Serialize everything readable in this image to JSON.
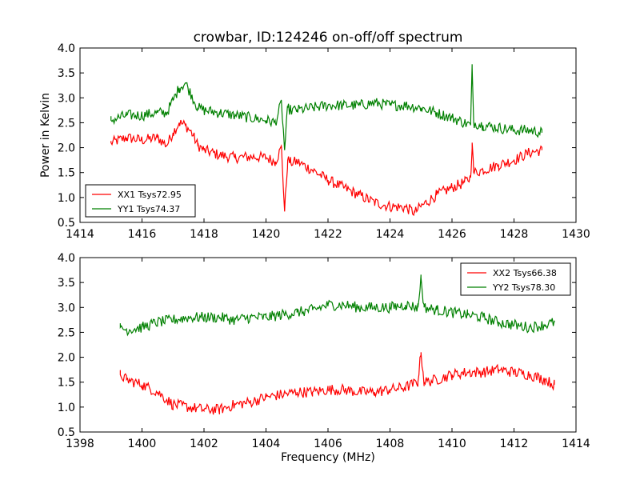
{
  "chart_data": [
    {
      "type": "line",
      "title": "crowbar, ID:124246 on-off/off spectrum",
      "xlabel": "",
      "ylabel": "Power in Kelvin",
      "xlim": [
        1414,
        1430
      ],
      "ylim": [
        0.5,
        4.0
      ],
      "xticks": [
        1414,
        1416,
        1418,
        1420,
        1422,
        1424,
        1426,
        1428,
        1430
      ],
      "yticks": [
        0.5,
        1.0,
        1.5,
        2.0,
        2.5,
        3.0,
        3.5,
        4.0
      ],
      "grid": false,
      "legend": "lower-left",
      "series": [
        {
          "name": "XX1 Tsys72.95",
          "color": "#ff0000",
          "x": [
            1415.0,
            1415.5,
            1416.0,
            1416.5,
            1416.8,
            1417.0,
            1417.2,
            1417.4,
            1417.6,
            1417.8,
            1418.0,
            1418.5,
            1419.0,
            1419.5,
            1420.0,
            1420.3,
            1420.5,
            1420.6,
            1420.7,
            1420.8,
            1421.0,
            1421.5,
            1422.0,
            1422.5,
            1423.0,
            1423.5,
            1424.0,
            1424.5,
            1424.8,
            1425.0,
            1425.5,
            1426.0,
            1426.4,
            1426.6,
            1426.65,
            1426.7,
            1427.0,
            1427.5,
            1428.0,
            1428.5,
            1428.9
          ],
          "y": [
            2.1,
            2.2,
            2.15,
            2.2,
            2.05,
            2.3,
            2.5,
            2.45,
            2.3,
            2.05,
            1.95,
            1.85,
            1.8,
            1.82,
            1.8,
            1.72,
            2.0,
            0.72,
            1.75,
            1.7,
            1.72,
            1.55,
            1.35,
            1.2,
            1.05,
            0.9,
            0.82,
            0.8,
            0.7,
            0.82,
            1.05,
            1.2,
            1.3,
            1.4,
            2.1,
            1.5,
            1.55,
            1.65,
            1.75,
            1.9,
            1.95
          ]
        },
        {
          "name": "YY1 Tsys74.37",
          "color": "#008000",
          "x": [
            1415.0,
            1415.5,
            1416.0,
            1416.5,
            1416.8,
            1417.0,
            1417.2,
            1417.4,
            1417.6,
            1417.8,
            1418.0,
            1418.5,
            1419.0,
            1419.5,
            1420.0,
            1420.3,
            1420.5,
            1420.6,
            1420.7,
            1420.8,
            1421.0,
            1421.5,
            1422.0,
            1422.5,
            1423.0,
            1423.5,
            1424.0,
            1424.5,
            1425.0,
            1425.5,
            1426.0,
            1426.4,
            1426.6,
            1426.65,
            1426.7,
            1427.0,
            1427.5,
            1428.0,
            1428.5,
            1428.9
          ],
          "y": [
            2.55,
            2.65,
            2.65,
            2.7,
            2.7,
            2.95,
            3.2,
            3.3,
            3.05,
            2.8,
            2.75,
            2.7,
            2.65,
            2.6,
            2.55,
            2.5,
            2.9,
            1.95,
            2.8,
            2.75,
            2.75,
            2.8,
            2.85,
            2.85,
            2.85,
            2.9,
            2.85,
            2.85,
            2.8,
            2.7,
            2.6,
            2.5,
            2.45,
            3.6,
            2.5,
            2.45,
            2.4,
            2.35,
            2.35,
            2.3
          ]
        }
      ]
    },
    {
      "type": "line",
      "title": "",
      "xlabel": "Frequency (MHz)",
      "ylabel": "",
      "xlim": [
        1398,
        1414
      ],
      "ylim": [
        0.5,
        4.0
      ],
      "xticks": [
        1398,
        1400,
        1402,
        1404,
        1406,
        1408,
        1410,
        1412,
        1414
      ],
      "yticks": [
        0.5,
        1.0,
        1.5,
        2.0,
        2.5,
        3.0,
        3.5,
        4.0
      ],
      "grid": false,
      "legend": "top-right",
      "series": [
        {
          "name": "XX2 Tsys66.38",
          "color": "#ff0000",
          "x": [
            1399.3,
            1399.5,
            1400.0,
            1400.5,
            1401.0,
            1401.5,
            1402.0,
            1402.5,
            1403.0,
            1403.5,
            1404.0,
            1404.5,
            1405.0,
            1405.5,
            1406.0,
            1406.5,
            1407.0,
            1407.5,
            1408.0,
            1408.5,
            1408.9,
            1409.0,
            1409.1,
            1409.5,
            1410.0,
            1410.5,
            1411.0,
            1411.5,
            1412.0,
            1412.5,
            1413.0,
            1413.3
          ],
          "y": [
            1.65,
            1.55,
            1.45,
            1.3,
            1.05,
            1.0,
            0.95,
            0.95,
            1.05,
            1.1,
            1.2,
            1.25,
            1.3,
            1.3,
            1.35,
            1.35,
            1.3,
            1.3,
            1.35,
            1.4,
            1.5,
            2.1,
            1.5,
            1.55,
            1.65,
            1.7,
            1.7,
            1.75,
            1.7,
            1.65,
            1.55,
            1.45
          ]
        },
        {
          "name": "YY2 Tsys78.30",
          "color": "#008000",
          "x": [
            1399.3,
            1399.5,
            1400.0,
            1400.5,
            1401.0,
            1401.5,
            1402.0,
            1402.5,
            1403.0,
            1403.5,
            1404.0,
            1404.5,
            1405.0,
            1405.5,
            1406.0,
            1406.5,
            1407.0,
            1407.5,
            1408.0,
            1408.5,
            1408.9,
            1409.0,
            1409.1,
            1409.5,
            1410.0,
            1410.5,
            1411.0,
            1411.5,
            1412.0,
            1412.5,
            1413.0,
            1413.3
          ],
          "y": [
            2.6,
            2.55,
            2.6,
            2.7,
            2.75,
            2.8,
            2.8,
            2.8,
            2.75,
            2.8,
            2.8,
            2.85,
            2.9,
            2.95,
            3.05,
            3.05,
            3.0,
            3.0,
            3.0,
            3.05,
            3.0,
            3.6,
            3.0,
            2.95,
            2.9,
            2.85,
            2.8,
            2.7,
            2.65,
            2.6,
            2.65,
            2.7
          ]
        }
      ]
    }
  ]
}
